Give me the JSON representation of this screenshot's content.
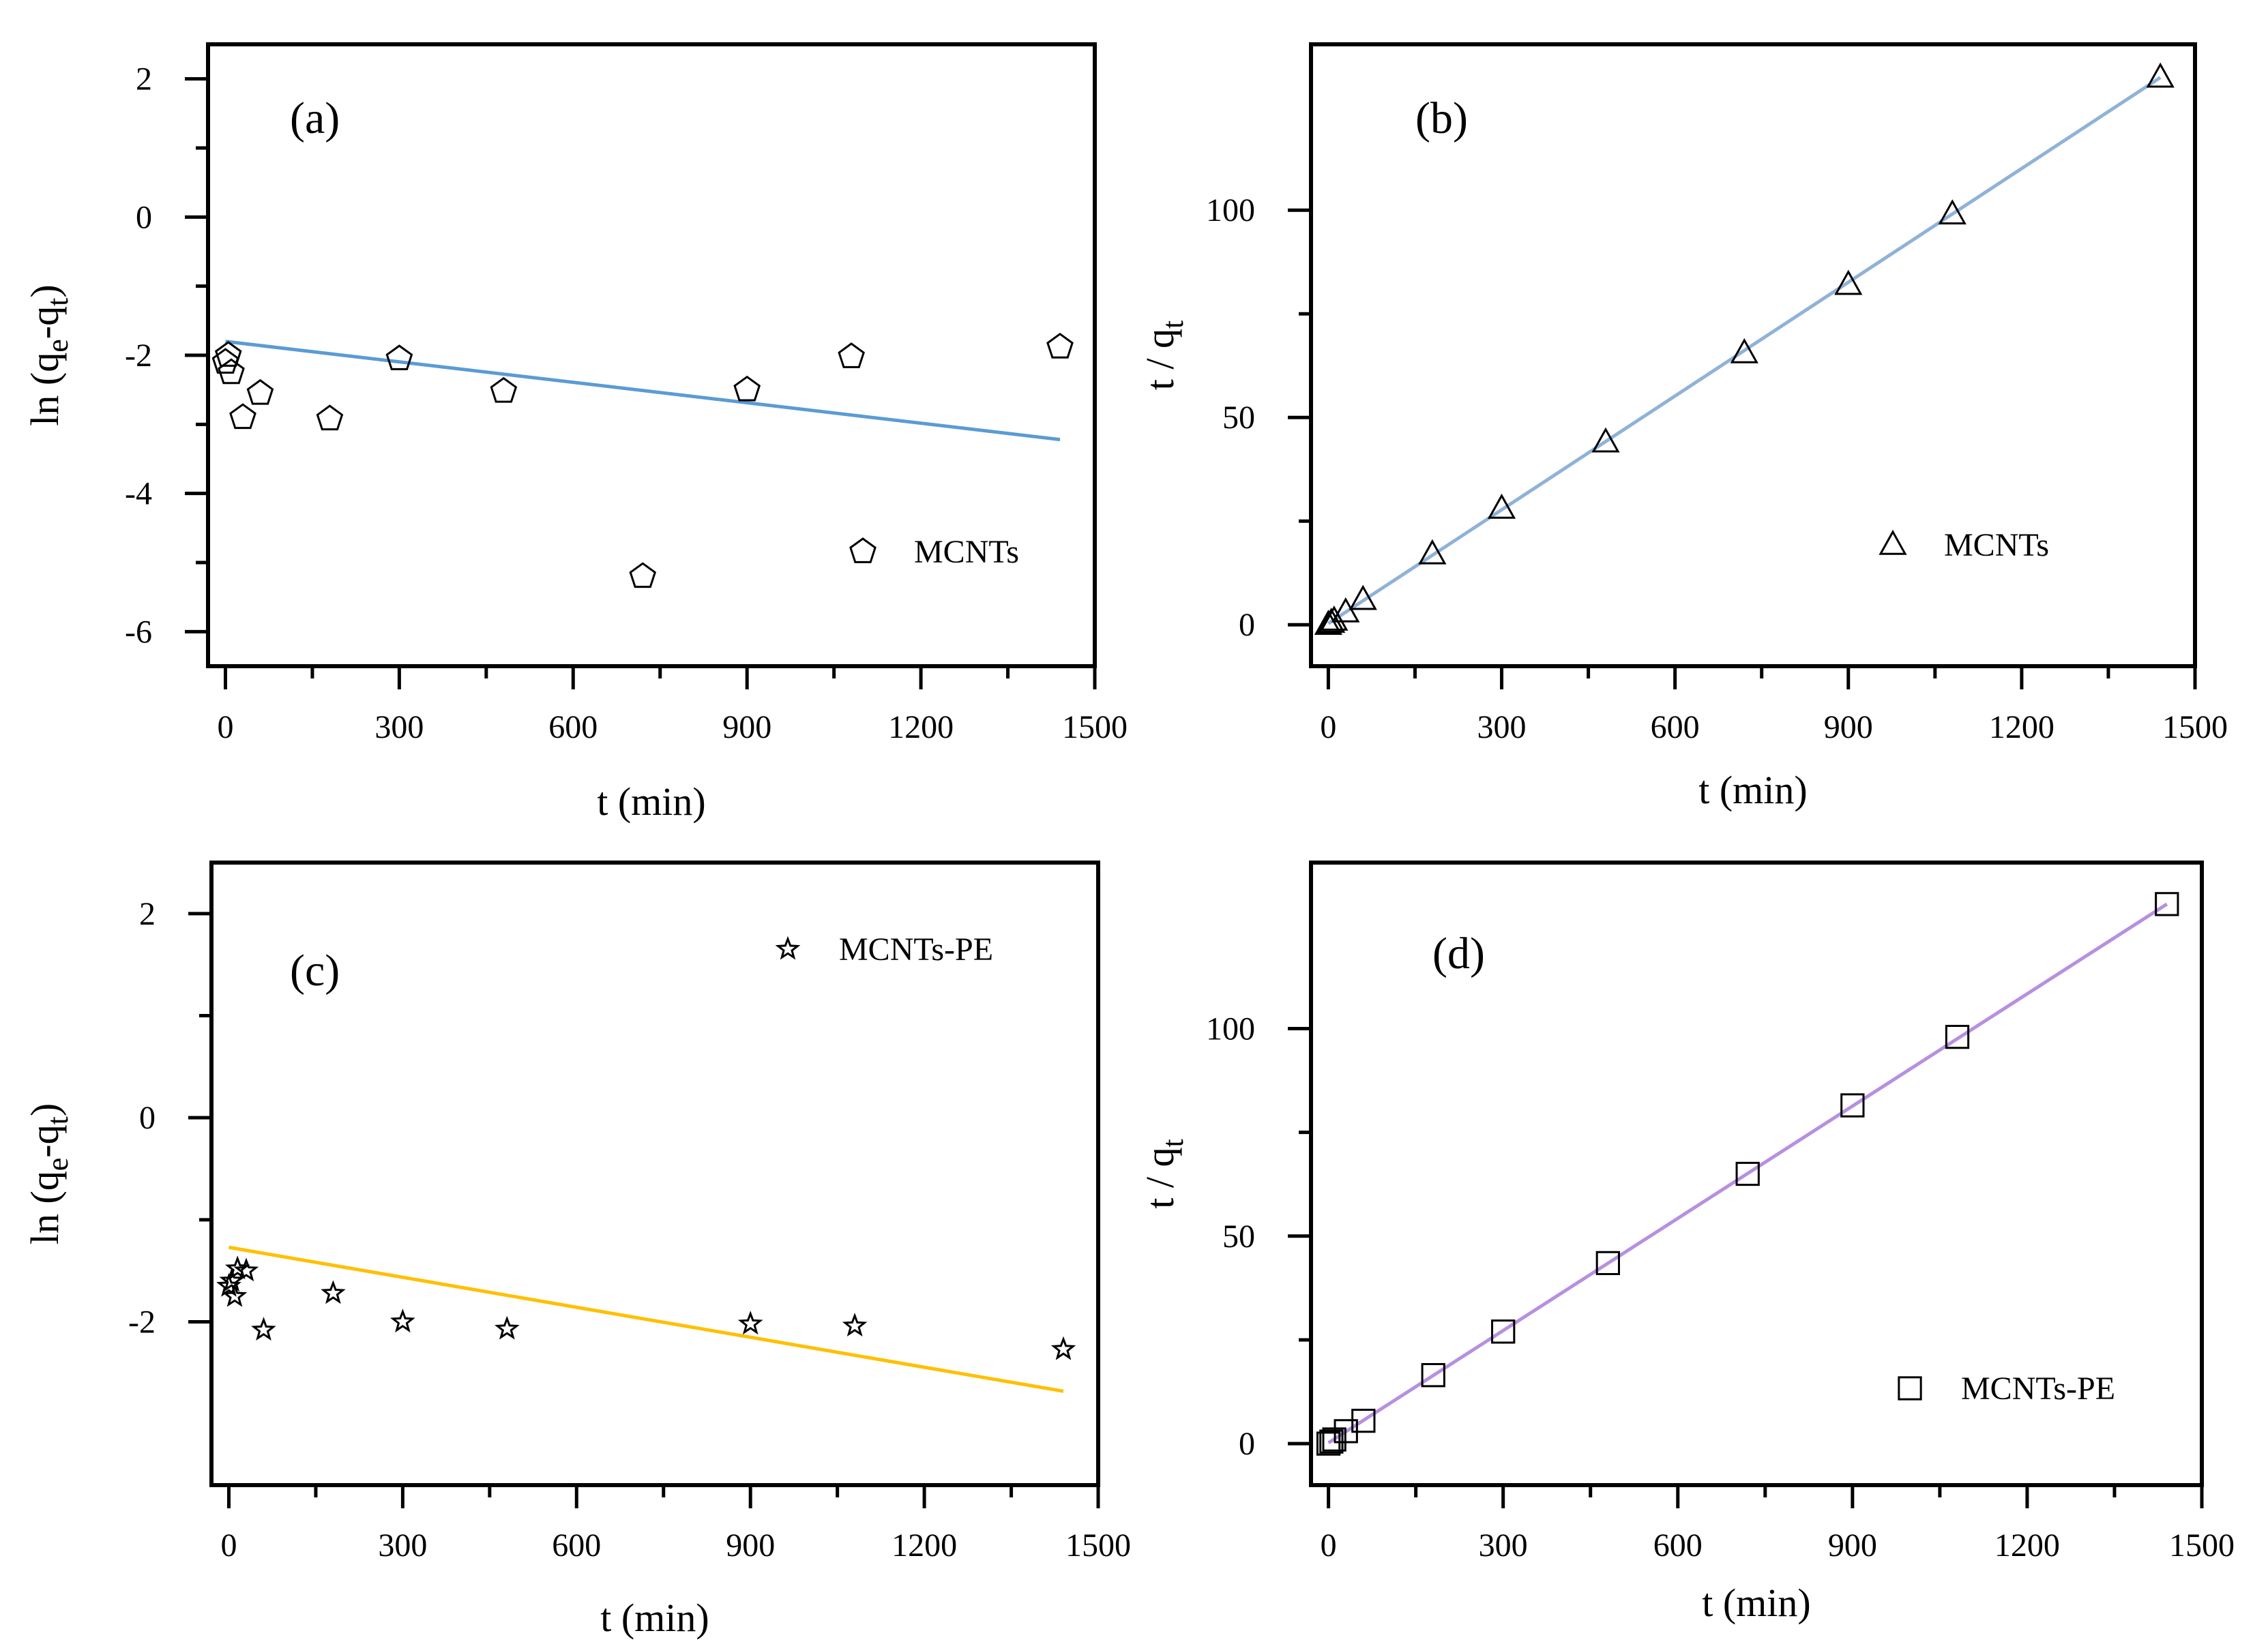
{
  "chart_data": [
    {
      "panel": "(a)",
      "type": "scatter",
      "xlabel": "t (min)",
      "ylabel": "ln(qe-qt)",
      "ylabel_parts": {
        "pre": "ln",
        "q1": "q",
        "s1": "e",
        "dash": "-q",
        "s2": "t"
      },
      "xlim": [
        -30,
        1500
      ],
      "ylim": [
        -6.5,
        2.5
      ],
      "xticks": [
        0,
        300,
        600,
        900,
        1200,
        1500
      ],
      "yticks": [
        -6,
        -4,
        -2,
        0,
        2
      ],
      "series": [
        {
          "name": "MCNTs",
          "marker": "pentagon",
          "x": [
            0,
            5,
            10,
            30,
            60,
            180,
            300,
            480,
            720,
            900,
            1080,
            1440
          ],
          "y": [
            -2.1,
            -2.0,
            -2.25,
            -2.9,
            -2.55,
            -2.92,
            -2.05,
            -2.52,
            -5.2,
            -2.5,
            -2.02,
            -1.88
          ]
        }
      ],
      "fit": {
        "x": [
          0,
          1440
        ],
        "y": [
          -1.8,
          -3.22
        ],
        "color": "#5b9bd5"
      },
      "legend": "MCNTs"
    },
    {
      "panel": "(b)",
      "type": "scatter",
      "xlabel": "t (min)",
      "ylabel": "t / qt",
      "ylabel_parts": {
        "pre": "t / q",
        "sub": "t"
      },
      "xlim": [
        -30,
        1500
      ],
      "ylim": [
        -10,
        140
      ],
      "xticks": [
        0,
        300,
        600,
        900,
        1200,
        1500
      ],
      "yticks": [
        0,
        50,
        100
      ],
      "series": [
        {
          "name": "MCNTs",
          "marker": "triangle",
          "x": [
            0,
            5,
            10,
            30,
            60,
            180,
            300,
            480,
            720,
            900,
            1080,
            1440
          ],
          "y": [
            0,
            0.5,
            1.0,
            3.0,
            6.0,
            17.0,
            28.0,
            44.0,
            65.5,
            82.0,
            99.0,
            132.0
          ]
        }
      ],
      "fit": {
        "x": [
          0,
          1440
        ],
        "y": [
          0.3,
          132.0
        ],
        "color": "#8fb2d8"
      },
      "legend": "MCNTs"
    },
    {
      "panel": "(c)",
      "type": "scatter",
      "xlabel": "t (min)",
      "ylabel": "ln(qe-qt)",
      "ylabel_parts": {
        "pre": "ln",
        "q1": "q",
        "s1": "e",
        "dash": "-q",
        "s2": "t"
      },
      "xlim": [
        -30,
        1500
      ],
      "ylim": [
        -3.6,
        2.5
      ],
      "xticks": [
        0,
        300,
        600,
        900,
        1200,
        1500
      ],
      "yticks": [
        -2,
        0,
        2
      ],
      "series": [
        {
          "name": "MCNTs-PE",
          "marker": "star",
          "x": [
            0,
            5,
            10,
            15,
            30,
            60,
            180,
            300,
            480,
            900,
            1080,
            1440
          ],
          "y": [
            -1.65,
            -1.6,
            -1.75,
            -1.48,
            -1.5,
            -2.08,
            -1.72,
            -2.0,
            -2.07,
            -2.02,
            -2.04,
            -2.27
          ]
        }
      ],
      "fit": {
        "x": [
          0,
          1440
        ],
        "y": [
          -1.27,
          -2.68
        ],
        "color": "#ffc000"
      },
      "legend": "MCNTs-PE"
    },
    {
      "panel": "(d)",
      "type": "scatter",
      "xlabel": "t (min)",
      "ylabel": "t / qt",
      "ylabel_parts": {
        "pre": "t / q",
        "sub": "t"
      },
      "xlim": [
        -30,
        1500
      ],
      "ylim": [
        -10,
        140
      ],
      "xticks": [
        0,
        300,
        600,
        900,
        1200,
        1500
      ],
      "yticks": [
        0,
        50,
        100
      ],
      "series": [
        {
          "name": "MCNTs-PE",
          "marker": "square",
          "x": [
            0,
            5,
            10,
            30,
            60,
            180,
            300,
            480,
            720,
            900,
            1080,
            1440
          ],
          "y": [
            0,
            0.5,
            1.0,
            3.0,
            5.5,
            16.5,
            27.0,
            43.5,
            65.0,
            81.5,
            98.0,
            130.0
          ]
        }
      ],
      "fit": {
        "x": [
          0,
          1440
        ],
        "y": [
          0.2,
          130.0
        ],
        "color": "#b790e0"
      },
      "legend": "MCNTs-PE"
    }
  ]
}
